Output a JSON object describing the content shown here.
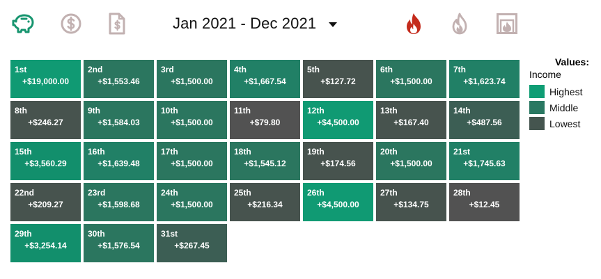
{
  "toolbar": {
    "left_icons": [
      {
        "name": "piggy-bank-icon",
        "color": "#17956f"
      },
      {
        "name": "dollar-circle-icon",
        "color": "#c2b1b1"
      },
      {
        "name": "invoice-dollar-icon",
        "color": "#c2b1b1"
      }
    ],
    "right_icons": [
      {
        "name": "fire-icon",
        "color": "#c42b1c"
      },
      {
        "name": "flame-outline-icon",
        "color": "#c2b1b1"
      },
      {
        "name": "fireplace-icon",
        "color": "#c2b1b1"
      }
    ],
    "date_range": "Jan 2021 - Dec 2021"
  },
  "colors": {
    "highest": "#159a75",
    "middle": "#2e7560",
    "lowest": "#474e4b",
    "min": "#535353"
  },
  "calendar": {
    "days": [
      {
        "label": "1st",
        "amount": "+$19,000.00",
        "level": "highest"
      },
      {
        "label": "2nd",
        "amount": "+$1,553.46",
        "level": "middle"
      },
      {
        "label": "3rd",
        "amount": "+$1,500.00",
        "level": "middle"
      },
      {
        "label": "4th",
        "amount": "+$1,667.54",
        "level": "middle-high"
      },
      {
        "label": "5th",
        "amount": "+$127.72",
        "level": "lowest"
      },
      {
        "label": "6th",
        "amount": "+$1,500.00",
        "level": "middle"
      },
      {
        "label": "7th",
        "amount": "+$1,623.74",
        "level": "middle-high"
      },
      {
        "label": "8th",
        "amount": "+$246.27",
        "level": "lowest"
      },
      {
        "label": "9th",
        "amount": "+$1,584.03",
        "level": "middle"
      },
      {
        "label": "10th",
        "amount": "+$1,500.00",
        "level": "middle"
      },
      {
        "label": "11th",
        "amount": "+$79.80",
        "level": "min"
      },
      {
        "label": "12th",
        "amount": "+$4,500.00",
        "level": "highest"
      },
      {
        "label": "13th",
        "amount": "+$167.40",
        "level": "lowest"
      },
      {
        "label": "14th",
        "amount": "+$487.56",
        "level": "lowest-mid"
      },
      {
        "label": "15th",
        "amount": "+$3,560.29",
        "level": "highest-low"
      },
      {
        "label": "16th",
        "amount": "+$1,639.48",
        "level": "middle-high"
      },
      {
        "label": "17th",
        "amount": "+$1,500.00",
        "level": "middle"
      },
      {
        "label": "18th",
        "amount": "+$1,545.12",
        "level": "middle"
      },
      {
        "label": "19th",
        "amount": "+$174.56",
        "level": "lowest"
      },
      {
        "label": "20th",
        "amount": "+$1,500.00",
        "level": "middle"
      },
      {
        "label": "21st",
        "amount": "+$1,745.63",
        "level": "middle-high"
      },
      {
        "label": "22nd",
        "amount": "+$209.27",
        "level": "lowest"
      },
      {
        "label": "23rd",
        "amount": "+$1,598.68",
        "level": "middle"
      },
      {
        "label": "24th",
        "amount": "+$1,500.00",
        "level": "middle"
      },
      {
        "label": "25th",
        "amount": "+$216.34",
        "level": "lowest"
      },
      {
        "label": "26th",
        "amount": "+$4,500.00",
        "level": "highest"
      },
      {
        "label": "27th",
        "amount": "+$134.75",
        "level": "lowest"
      },
      {
        "label": "28th",
        "amount": "+$12.45",
        "level": "min"
      },
      {
        "label": "29th",
        "amount": "+$3,254.14",
        "level": "highest-low"
      },
      {
        "label": "30th",
        "amount": "+$1,576.54",
        "level": "middle"
      },
      {
        "label": "31st",
        "amount": "+$267.45",
        "level": "lowest-mid"
      }
    ],
    "level_colors": {
      "highest": "#109a73",
      "highest-low": "#128f6c",
      "middle-high": "#218066",
      "middle": "#2b765f",
      "lowest-mid": "#3c5e54",
      "lowest": "#47534e",
      "min": "#525252"
    }
  },
  "legend": {
    "title": "Values:",
    "subtitle": "Income",
    "items": [
      {
        "label": "Highest",
        "color": "#0f9d74"
      },
      {
        "label": "Middle",
        "color": "#2a7862"
      },
      {
        "label": "Lowest",
        "color": "#45554f"
      }
    ]
  }
}
